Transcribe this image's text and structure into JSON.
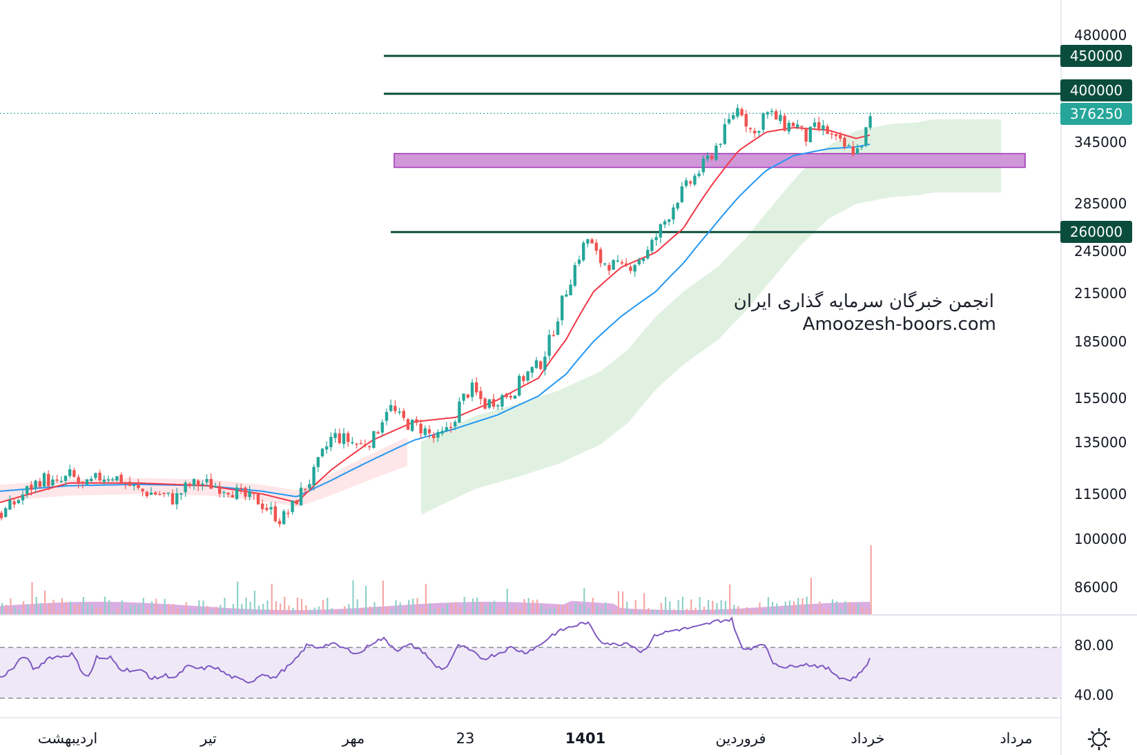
{
  "colors": {
    "up": "#26a69a",
    "down": "#ef5350",
    "ema_fast": "#f23645",
    "ema_slow": "#2196f3",
    "level_line": "#0b4d3c",
    "zone_fill": "#ce93d8",
    "zone_border": "#9c27b0",
    "cloud_green": "#c8e6c9",
    "cloud_red": "#ffcdd2",
    "rsi_line": "#7e57c2",
    "rsi_band": "#ede7f6",
    "volume_ma": "#ce93d8",
    "last_price_tag": "#26a69a"
  },
  "watermark": {
    "line1": "انجمن خبرگان سرمایه گذاری ایران",
    "line2": "Amoozesh-boors.com"
  },
  "price_axis": {
    "ticks": [
      "480000",
      "345000",
      "285000",
      "245000",
      "215000",
      "185000",
      "155000",
      "135000",
      "115000",
      "100000",
      "86000"
    ]
  },
  "level_tags": [
    {
      "label": "450000",
      "value": 450000
    },
    {
      "label": "400000",
      "value": 400000
    },
    {
      "label": "260000",
      "value": 260000
    }
  ],
  "last_price": {
    "label": "376250",
    "value": 376250
  },
  "rsi_axis": {
    "ticks": [
      "80.00",
      "40.00"
    ]
  },
  "time_axis": {
    "labels": [
      "اردیبهشت",
      "تیر",
      "مهر",
      "23",
      "1401",
      "فروردین",
      "خرداد",
      "مرداد"
    ],
    "bold": [
      false,
      false,
      false,
      false,
      true,
      false,
      false,
      false
    ]
  },
  "settings_icon": "gear-icon",
  "chart_data": {
    "type": "candlestick",
    "scale": "log",
    "price_range": [
      80000,
      500000
    ],
    "horizontal_levels": [
      450000,
      400000,
      260000
    ],
    "support_zone": [
      318000,
      332000
    ],
    "price_path": [
      [
        0,
        108000
      ],
      [
        20,
        112000
      ],
      [
        40,
        117000
      ],
      [
        60,
        121000
      ],
      [
        80,
        118000
      ],
      [
        100,
        122000
      ],
      [
        120,
        117000
      ],
      [
        140,
        121000
      ],
      [
        160,
        122000
      ],
      [
        180,
        119000
      ],
      [
        200,
        116000
      ],
      [
        230,
        115000
      ],
      [
        250,
        113000
      ],
      [
        270,
        118000
      ],
      [
        290,
        119000
      ],
      [
        310,
        118000
      ],
      [
        330,
        117000
      ],
      [
        350,
        114000
      ],
      [
        370,
        113000
      ],
      [
        390,
        109000
      ],
      [
        405,
        106000
      ],
      [
        420,
        110000
      ],
      [
        435,
        116000
      ],
      [
        450,
        121000
      ],
      [
        465,
        130000
      ],
      [
        480,
        138000
      ],
      [
        500,
        136000
      ],
      [
        520,
        134000
      ],
      [
        540,
        137000
      ],
      [
        560,
        152000
      ],
      [
        575,
        146000
      ],
      [
        590,
        143000
      ],
      [
        610,
        141000
      ],
      [
        630,
        136000
      ],
      [
        650,
        141000
      ],
      [
        665,
        153000
      ],
      [
        680,
        160000
      ],
      [
        700,
        152000
      ],
      [
        720,
        155000
      ],
      [
        740,
        158000
      ],
      [
        760,
        167000
      ],
      [
        780,
        172000
      ],
      [
        795,
        186000
      ],
      [
        810,
        206000
      ],
      [
        825,
        226000
      ],
      [
        840,
        246000
      ],
      [
        850,
        255000
      ],
      [
        865,
        238000
      ],
      [
        885,
        235000
      ],
      [
        900,
        231000
      ],
      [
        920,
        238000
      ],
      [
        935,
        243000
      ],
      [
        950,
        258000
      ],
      [
        965,
        273000
      ],
      [
        980,
        290000
      ],
      [
        1000,
        305000
      ],
      [
        1015,
        318000
      ],
      [
        1030,
        333000
      ],
      [
        1045,
        352000
      ],
      [
        1060,
        376000
      ],
      [
        1070,
        385000
      ],
      [
        1080,
        365000
      ],
      [
        1090,
        350000
      ],
      [
        1105,
        377000
      ],
      [
        1120,
        372000
      ],
      [
        1135,
        362000
      ],
      [
        1150,
        365000
      ],
      [
        1165,
        348000
      ],
      [
        1180,
        360000
      ],
      [
        1195,
        356000
      ],
      [
        1210,
        344000
      ],
      [
        1225,
        337000
      ],
      [
        1240,
        335000
      ],
      [
        1250,
        350000
      ],
      [
        1262,
        376250
      ]
    ],
    "ema_fast": [
      [
        0,
        112000
      ],
      [
        100,
        119000
      ],
      [
        200,
        119000
      ],
      [
        300,
        118000
      ],
      [
        380,
        115000
      ],
      [
        430,
        112000
      ],
      [
        480,
        124000
      ],
      [
        540,
        136000
      ],
      [
        600,
        144000
      ],
      [
        660,
        146000
      ],
      [
        720,
        154000
      ],
      [
        780,
        165000
      ],
      [
        820,
        186000
      ],
      [
        860,
        216000
      ],
      [
        900,
        233000
      ],
      [
        950,
        244000
      ],
      [
        990,
        263000
      ],
      [
        1030,
        300000
      ],
      [
        1070,
        335000
      ],
      [
        1110,
        355000
      ],
      [
        1150,
        360000
      ],
      [
        1200,
        357000
      ],
      [
        1240,
        348000
      ],
      [
        1262,
        352000
      ]
    ],
    "ema_slow": [
      [
        0,
        116000
      ],
      [
        100,
        118000
      ],
      [
        200,
        118500
      ],
      [
        300,
        118000
      ],
      [
        380,
        116000
      ],
      [
        430,
        114000
      ],
      [
        480,
        120000
      ],
      [
        540,
        128000
      ],
      [
        600,
        136000
      ],
      [
        660,
        141000
      ],
      [
        720,
        147000
      ],
      [
        780,
        156000
      ],
      [
        820,
        167000
      ],
      [
        860,
        185000
      ],
      [
        900,
        200000
      ],
      [
        950,
        216000
      ],
      [
        990,
        236000
      ],
      [
        1030,
        262000
      ],
      [
        1070,
        290000
      ],
      [
        1110,
        315000
      ],
      [
        1150,
        330000
      ],
      [
        1200,
        337000
      ],
      [
        1240,
        339000
      ],
      [
        1262,
        342000
      ]
    ],
    "rsi": {
      "range": [
        20,
        100
      ],
      "band": [
        30,
        70
      ],
      "values": [
        [
          0,
          46
        ],
        [
          20,
          54
        ],
        [
          35,
          64
        ],
        [
          50,
          52
        ],
        [
          70,
          62
        ],
        [
          90,
          63
        ],
        [
          105,
          65
        ],
        [
          120,
          50
        ],
        [
          130,
          47
        ],
        [
          140,
          63
        ],
        [
          150,
          60
        ],
        [
          160,
          62
        ],
        [
          175,
          53
        ],
        [
          190,
          52
        ],
        [
          210,
          51
        ],
        [
          220,
          45
        ],
        [
          240,
          48
        ],
        [
          255,
          46
        ],
        [
          270,
          55
        ],
        [
          290,
          53
        ],
        [
          310,
          55
        ],
        [
          330,
          48
        ],
        [
          350,
          44
        ],
        [
          365,
          43
        ],
        [
          380,
          50
        ],
        [
          395,
          45
        ],
        [
          410,
          52
        ],
        [
          425,
          58
        ],
        [
          445,
          72
        ],
        [
          460,
          70
        ],
        [
          480,
          73
        ],
        [
          500,
          69
        ],
        [
          520,
          65
        ],
        [
          540,
          74
        ],
        [
          555,
          77
        ],
        [
          575,
          68
        ],
        [
          595,
          72
        ],
        [
          615,
          66
        ],
        [
          630,
          55
        ],
        [
          645,
          53
        ],
        [
          665,
          72
        ],
        [
          685,
          66
        ],
        [
          700,
          61
        ],
        [
          720,
          65
        ],
        [
          740,
          70
        ],
        [
          760,
          66
        ],
        [
          780,
          71
        ],
        [
          800,
          80
        ],
        [
          820,
          85
        ],
        [
          850,
          90
        ],
        [
          870,
          75
        ],
        [
          890,
          72
        ],
        [
          910,
          74
        ],
        [
          930,
          66
        ],
        [
          950,
          80
        ],
        [
          980,
          84
        ],
        [
          1010,
          86
        ],
        [
          1040,
          91
        ],
        [
          1060,
          92
        ],
        [
          1075,
          68
        ],
        [
          1090,
          70
        ],
        [
          1105,
          74
        ],
        [
          1120,
          58
        ],
        [
          1140,
          54
        ],
        [
          1160,
          57
        ],
        [
          1180,
          56
        ],
        [
          1200,
          53
        ],
        [
          1215,
          47
        ],
        [
          1230,
          44
        ],
        [
          1245,
          49
        ],
        [
          1262,
          62
        ]
      ]
    }
  }
}
